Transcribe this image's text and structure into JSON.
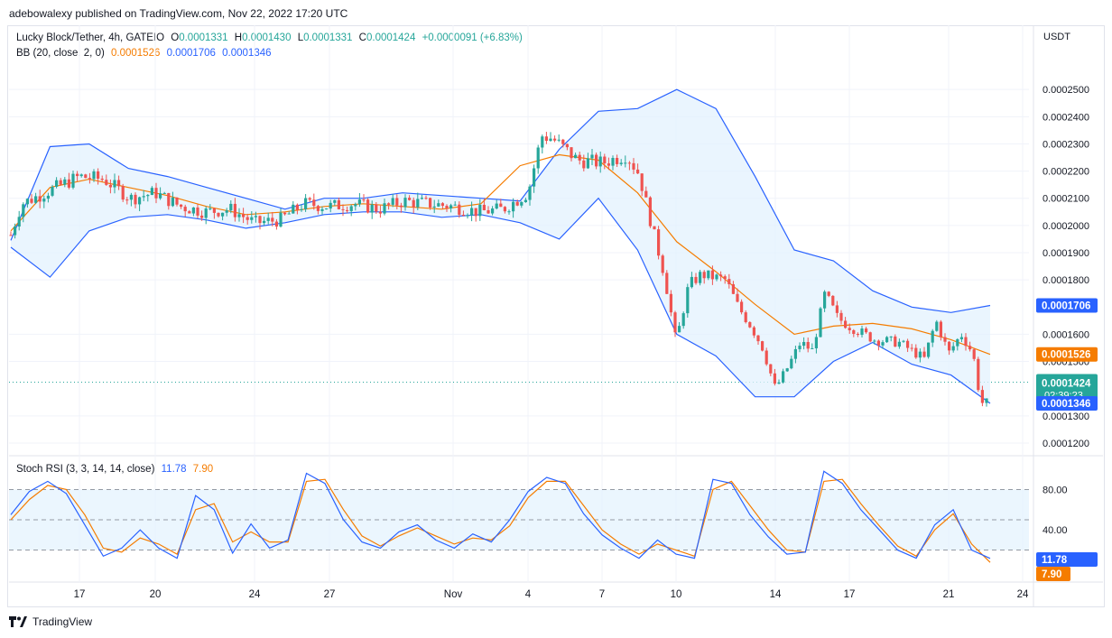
{
  "header": {
    "published_by": "adebowalexy published on TradingView.com, Nov 22, 2022 17:20 UTC"
  },
  "symbol": {
    "title": "Lucky Block/Tether, 4h, GATEIO",
    "o_label": "O",
    "o_value": "0.0001331",
    "h_label": "H",
    "h_value": "0.0001430",
    "l_label": "L",
    "l_value": "0.0001331",
    "c_label": "C",
    "c_value": "0.0001424",
    "change": "+0.0000091 (+6.83%)"
  },
  "bb": {
    "label": "BB (20, close, 2, 0)",
    "basis": "0.0001526",
    "upper": "0.0001706",
    "lower": "0.0001346"
  },
  "stoch": {
    "label": "Stoch RSI (3, 3, 14, 14, close)",
    "k": "11.78",
    "d": "7.90"
  },
  "price_axis": {
    "currency": "USDT",
    "ticks": [
      "0.0002500",
      "0.0002400",
      "0.0002300",
      "0.0002200",
      "0.0002100",
      "0.0002000",
      "0.0001900",
      "0.0001800",
      "0.0001600",
      "0.0001500",
      "0.0001300",
      "0.0001200"
    ]
  },
  "badges": {
    "upper": "0.0001706",
    "basis": "0.0001526",
    "last": "0.0001424",
    "countdown": "02:39:23",
    "lower": "0.0001346",
    "k": "11.78",
    "d": "7.90"
  },
  "stoch_axis": {
    "ticks": [
      "80.00",
      "40.00"
    ]
  },
  "time_axis": {
    "ticks": [
      "17",
      "20",
      "24",
      "27",
      "Nov",
      "4",
      "7",
      "10",
      "14",
      "17",
      "21",
      "24"
    ]
  },
  "footer": {
    "brand": "TradingView"
  },
  "colors": {
    "up": "#26a69a",
    "down": "#ef5350",
    "basis": "#f57c00",
    "band": "#2962ff",
    "fill": "#e3f2fd"
  },
  "chart_data": {
    "type": "candlestick",
    "title": "Lucky Block/Tether, 4h, GATEIO",
    "ylim": [
      0.000117,
      0.000263
    ],
    "stoch_ylim": [
      0,
      100
    ],
    "x_ticks": [
      "17",
      "20",
      "24",
      "27",
      "Nov",
      "4",
      "7",
      "10",
      "14",
      "17",
      "21",
      "24"
    ],
    "close_path": [
      {
        "d": "Oct 16",
        "v": 0.0001965
      },
      {
        "d": "Oct 16.5",
        "v": 0.000208
      },
      {
        "d": "Oct 17",
        "v": 0.000218
      },
      {
        "d": "Oct 18",
        "v": 0.000217
      },
      {
        "d": "Oct 19",
        "v": 0.00021
      },
      {
        "d": "Oct 20",
        "v": 0.000212
      },
      {
        "d": "Oct 21",
        "v": 0.000207
      },
      {
        "d": "Oct 22",
        "v": 0.000205
      },
      {
        "d": "Oct 23",
        "v": 0.000206
      },
      {
        "d": "Oct 24",
        "v": 0.000201
      },
      {
        "d": "Oct 25",
        "v": 0.000202
      },
      {
        "d": "Oct 26",
        "v": 0.000208
      },
      {
        "d": "Oct 27",
        "v": 0.000207
      },
      {
        "d": "Oct 28",
        "v": 0.000208
      },
      {
        "d": "Oct 29",
        "v": 0.000206
      },
      {
        "d": "Oct 30",
        "v": 0.000209
      },
      {
        "d": "Oct 31",
        "v": 0.000208
      },
      {
        "d": "Nov 1",
        "v": 0.000207
      },
      {
        "d": "Nov 2",
        "v": 0.000205
      },
      {
        "d": "Nov 3",
        "v": 0.000206
      },
      {
        "d": "Nov 4",
        "v": 0.000212
      },
      {
        "d": "Nov 4.5",
        "v": 0.000233
      },
      {
        "d": "Nov 5",
        "v": 0.000232
      },
      {
        "d": "Nov 6",
        "v": 0.000224
      },
      {
        "d": "Nov 7",
        "v": 0.000223
      },
      {
        "d": "Nov 8",
        "v": 0.000226
      },
      {
        "d": "Nov 8.5",
        "v": 0.000219
      },
      {
        "d": "Nov 9",
        "v": 0.0002
      },
      {
        "d": "Nov 9.5",
        "v": 0.000182
      },
      {
        "d": "Nov 10",
        "v": 0.000157
      },
      {
        "d": "Nov 10.5",
        "v": 0.000178
      },
      {
        "d": "Nov 11",
        "v": 0.000182
      },
      {
        "d": "Nov 12",
        "v": 0.00018
      },
      {
        "d": "Nov 12.5",
        "v": 0.00017
      },
      {
        "d": "Nov 13",
        "v": 0.000163
      },
      {
        "d": "Nov 13.5",
        "v": 0.000155
      },
      {
        "d": "Nov 14",
        "v": 0.00014
      },
      {
        "d": "Nov 14.5",
        "v": 0.000148
      },
      {
        "d": "Nov 15",
        "v": 0.000157
      },
      {
        "d": "Nov 15.5",
        "v": 0.000154
      },
      {
        "d": "Nov 16",
        "v": 0.000175
      },
      {
        "d": "Nov 16.5",
        "v": 0.000166
      },
      {
        "d": "Nov 17",
        "v": 0.000163
      },
      {
        "d": "Nov 18",
        "v": 0.000158
      },
      {
        "d": "Nov 19",
        "v": 0.000157
      },
      {
        "d": "Nov 20",
        "v": 0.000151
      },
      {
        "d": "Nov 20.5",
        "v": 0.000165
      },
      {
        "d": "Nov 21",
        "v": 0.000153
      },
      {
        "d": "Nov 21.5",
        "v": 0.00016
      },
      {
        "d": "Nov 22",
        "v": 0.000153
      },
      {
        "d": "Nov 22.3",
        "v": 0.000136
      },
      {
        "d": "Nov 22.6",
        "v": 0.0001331
      },
      {
        "d": "Nov 22.7",
        "v": 0.0001424
      }
    ],
    "bb_upper": [
      0.0001945,
      0.000229,
      0.00023,
      0.000221,
      0.000218,
      0.000214,
      0.00021,
      0.000206,
      0.00021,
      0.00021,
      0.000212,
      0.000211,
      0.00021,
      0.000209,
      0.000228,
      0.000242,
      0.000243,
      0.00025,
      0.000243,
      0.000218,
      0.000191,
      0.000187,
      0.000176,
      0.00017,
      0.000168,
      0.0001706
    ],
    "bb_basis": [
      0.000198,
      0.000214,
      0.000217,
      0.000214,
      0.000211,
      0.000207,
      0.000204,
      0.000205,
      0.000207,
      0.000208,
      0.000207,
      0.000206,
      0.000208,
      0.000222,
      0.000226,
      0.000224,
      0.000212,
      0.000194,
      0.000183,
      0.000171,
      0.00016,
      0.000163,
      0.000164,
      0.000162,
      0.000158,
      0.0001526
    ],
    "bb_lower": [
      0.000192,
      0.000181,
      0.000198,
      0.000203,
      0.000204,
      0.000202,
      0.000199,
      0.000201,
      0.000204,
      0.000205,
      0.000205,
      0.000203,
      0.000204,
      0.000201,
      0.000195,
      0.00021,
      0.000191,
      0.00016,
      0.000152,
      0.000137,
      0.000137,
      0.00015,
      0.000157,
      0.000149,
      0.000145,
      0.0001346
    ],
    "stoch_k": [
      55,
      78,
      88,
      76,
      45,
      14,
      22,
      40,
      22,
      12,
      74,
      60,
      17,
      46,
      22,
      30,
      96,
      86,
      50,
      28,
      22,
      38,
      45,
      30,
      22,
      36,
      28,
      50,
      78,
      92,
      86,
      56,
      35,
      22,
      12,
      30,
      16,
      12,
      90,
      86,
      55,
      33,
      16,
      18,
      98,
      86,
      60,
      40,
      20,
      12,
      45,
      60,
      20,
      11.78
    ],
    "stoch_d": [
      50,
      70,
      84,
      80,
      55,
      22,
      18,
      32,
      26,
      16,
      60,
      66,
      28,
      38,
      28,
      28,
      88,
      90,
      60,
      34,
      24,
      34,
      42,
      34,
      26,
      32,
      30,
      44,
      72,
      88,
      88,
      64,
      40,
      26,
      16,
      26,
      20,
      14,
      80,
      88,
      64,
      40,
      20,
      18,
      88,
      90,
      66,
      44,
      24,
      14,
      40,
      56,
      26,
      7.9
    ]
  }
}
